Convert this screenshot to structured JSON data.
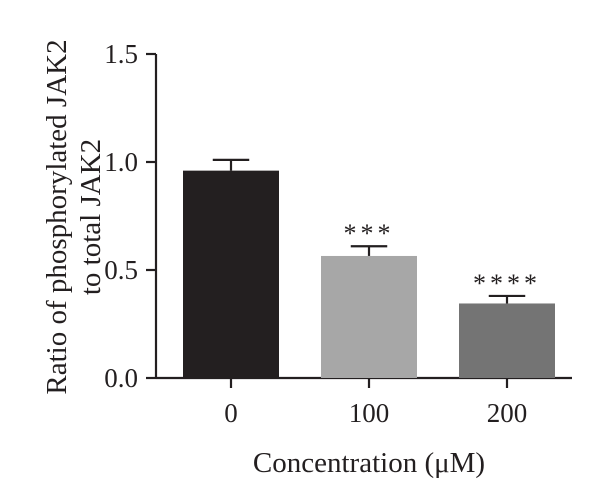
{
  "chart_data": {
    "type": "bar",
    "title": "",
    "xlabel": "Concentration (μM)",
    "ylabel": [
      "Ratio of phosphorylated JAK2",
      "to total JAK2"
    ],
    "categories": [
      "0",
      "100",
      "200"
    ],
    "values": [
      0.96,
      0.565,
      0.345
    ],
    "errors": [
      0.05,
      0.045,
      0.035
    ],
    "significance": [
      "",
      "***",
      "****"
    ],
    "bar_colors": [
      "#231f20",
      "#a7a7a7",
      "#747474"
    ],
    "ylim": [
      0,
      1.5
    ],
    "yticks": [
      0,
      0.5,
      1.0,
      1.5
    ],
    "ytick_labels": [
      "0.0",
      "0.5",
      "1.0",
      "1.5"
    ],
    "grid": false,
    "legend": "none"
  }
}
